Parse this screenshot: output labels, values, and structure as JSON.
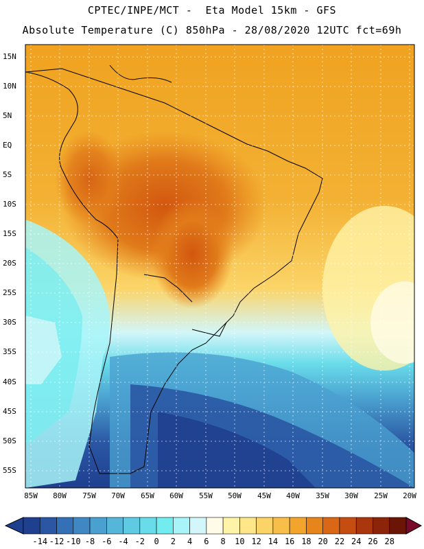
{
  "header": {
    "line1": "CPTEC/INPE/MCT -  Eta Model 15km - GFS",
    "line2": "Absolute Temperature (C) 850hPa - 28/08/2020 12UTC fct=69h"
  },
  "map": {
    "lat_labels": [
      "15N",
      "10N",
      "5N",
      "EQ",
      "5S",
      "10S",
      "15S",
      "20S",
      "25S",
      "30S",
      "35S",
      "40S",
      "45S",
      "50S",
      "55S"
    ],
    "lon_labels": [
      "85W",
      "80W",
      "75W",
      "70W",
      "65W",
      "60W",
      "55W",
      "50W",
      "45W",
      "40W",
      "35W",
      "30W",
      "25W",
      "20W"
    ]
  },
  "colorbar": {
    "labels": [
      "-14",
      "-12",
      "-10",
      "-8",
      "-6",
      "-4",
      "-2",
      "0",
      "2",
      "4",
      "6",
      "8",
      "10",
      "12",
      "14",
      "16",
      "18",
      "20",
      "22",
      "24",
      "26",
      "28"
    ],
    "colors": [
      "#1f3f8f",
      "#2a56a3",
      "#3470b5",
      "#3f88c4",
      "#4aa0cf",
      "#55b6d9",
      "#5fcbe3",
      "#69dcea",
      "#73ecf0",
      "#a8f4f8",
      "#d2f6f9",
      "#fffbe6",
      "#fff3a8",
      "#ffe689",
      "#fbd468",
      "#f7be49",
      "#f2a52a",
      "#e7851d",
      "#d96716",
      "#c64d11",
      "#a9360c",
      "#8b2409",
      "#6b1507"
    ]
  }
}
